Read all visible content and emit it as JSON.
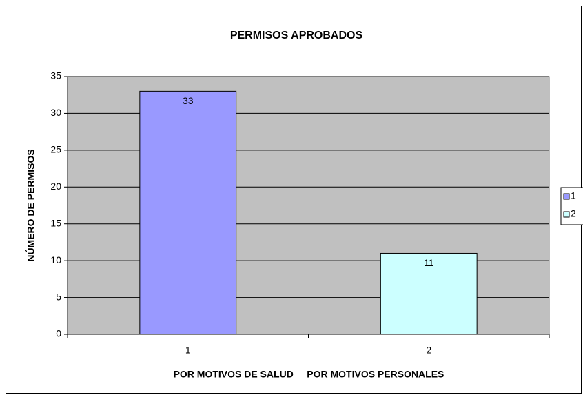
{
  "chart_data": {
    "type": "bar",
    "title": "PERMISOS APROBADOS",
    "ylabel": "NÚMERO DE PERMISOS",
    "xlabel": "POR MOTIVOS DE SALUD     POR MOTIVOS PERSONALES",
    "categories": [
      "1",
      "2"
    ],
    "values": [
      33,
      11
    ],
    "colors": [
      "#9999ff",
      "#ccffff"
    ],
    "ylim": [
      0,
      35
    ],
    "yticks": [
      0,
      5,
      10,
      15,
      20,
      25,
      30,
      35
    ],
    "grid": true,
    "legend": "right",
    "plot_background": "#c0c0c0"
  }
}
